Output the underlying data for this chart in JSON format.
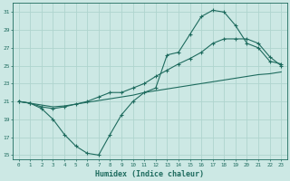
{
  "xlabel": "Humidex (Indice chaleur)",
  "bg_color": "#cce8e4",
  "grid_color": "#afd4ce",
  "line_color": "#1e6b5e",
  "line1_x": [
    0,
    1,
    2,
    3,
    4,
    5,
    6,
    7,
    8,
    9,
    10,
    11,
    12,
    13,
    14,
    15,
    16,
    17,
    18,
    19,
    20,
    21,
    22,
    23
  ],
  "line1_y": [
    21.0,
    20.8,
    20.6,
    20.4,
    20.5,
    20.7,
    20.9,
    21.1,
    21.3,
    21.5,
    21.7,
    22.0,
    22.2,
    22.4,
    22.6,
    22.8,
    23.0,
    23.2,
    23.4,
    23.6,
    23.8,
    24.0,
    24.1,
    24.3
  ],
  "line2_x": [
    0,
    1,
    2,
    3,
    4,
    5,
    6,
    7,
    8,
    9,
    10,
    11,
    12,
    13,
    14,
    15,
    16,
    17,
    18,
    19,
    20,
    21,
    22,
    23
  ],
  "line2_y": [
    21.0,
    20.8,
    20.2,
    19.0,
    17.3,
    16.0,
    15.2,
    15.0,
    17.3,
    19.5,
    21.0,
    22.0,
    22.5,
    26.2,
    26.5,
    28.5,
    30.5,
    31.2,
    31.0,
    29.5,
    27.5,
    27.0,
    25.5,
    25.2
  ],
  "line3_x": [
    0,
    1,
    2,
    3,
    4,
    5,
    6,
    7,
    8,
    9,
    10,
    11,
    12,
    13,
    14,
    15,
    16,
    17,
    18,
    19,
    20,
    21,
    22,
    23
  ],
  "line3_y": [
    21.0,
    20.8,
    20.4,
    20.2,
    20.4,
    20.7,
    21.0,
    21.5,
    22.0,
    22.0,
    22.5,
    23.0,
    23.8,
    24.5,
    25.2,
    25.8,
    26.5,
    27.5,
    28.0,
    28.0,
    28.0,
    27.5,
    26.0,
    25.0
  ],
  "ylim": [
    14.5,
    32.0
  ],
  "yticks": [
    15,
    17,
    19,
    21,
    23,
    25,
    27,
    29,
    31
  ],
  "xlim": [
    -0.5,
    23.5
  ],
  "xticks": [
    0,
    1,
    2,
    3,
    4,
    5,
    6,
    7,
    8,
    9,
    10,
    11,
    12,
    13,
    14,
    15,
    16,
    17,
    18,
    19,
    20,
    21,
    22,
    23
  ]
}
